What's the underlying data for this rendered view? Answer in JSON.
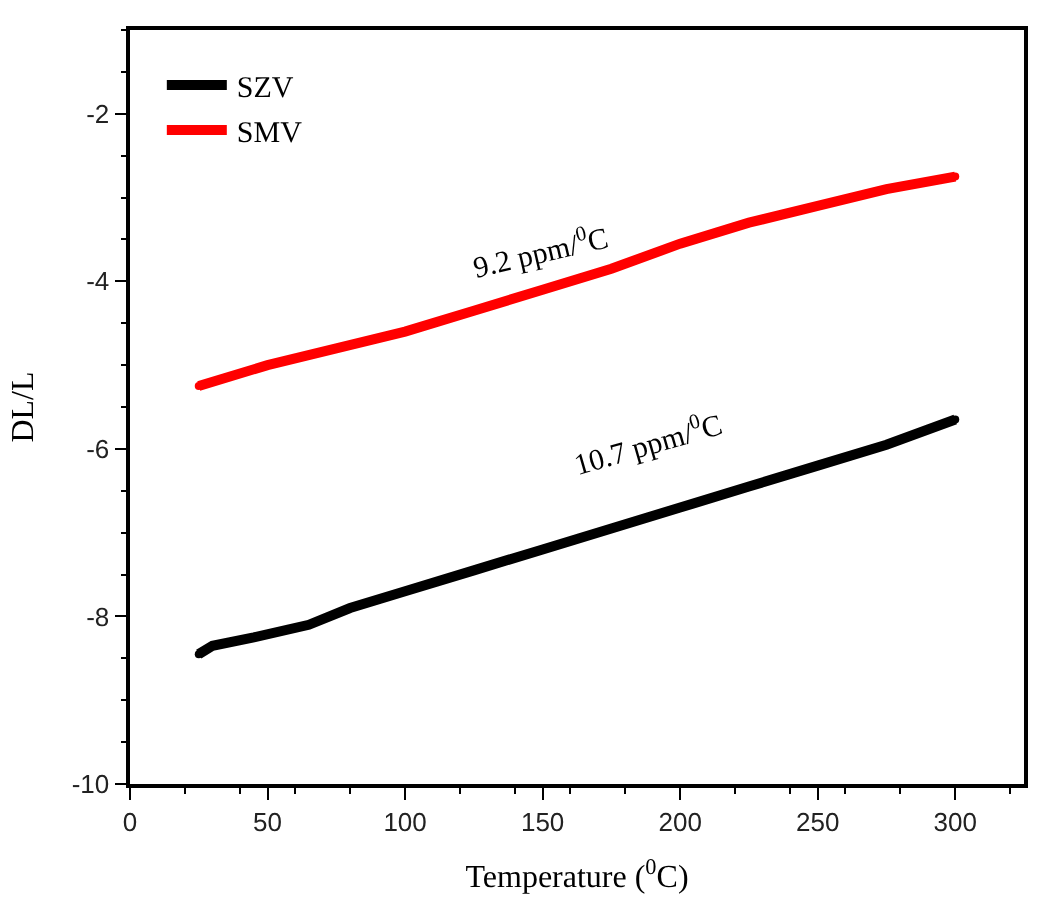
{
  "chart_data": {
    "type": "line",
    "xlabel": "Temperature ($^{0}$C)",
    "ylabel": "DL/L",
    "xlim": [
      0,
      325
    ],
    "xticks": [
      0,
      50,
      100,
      150,
      200,
      250,
      300
    ],
    "ylim": [
      -10,
      -1
    ],
    "yticks": [
      -10,
      -8,
      -6,
      -4,
      -2
    ],
    "legend": "top left",
    "marker": "circle",
    "series": [
      {
        "name": "SZV",
        "color": "#000000",
        "x": [
          25,
          30,
          45,
          65,
          80,
          100,
          125,
          150,
          175,
          200,
          225,
          250,
          275,
          300
        ],
        "values": [
          -8.45,
          -8.35,
          -8.25,
          -8.1,
          -7.9,
          -7.7,
          -7.45,
          -7.2,
          -6.95,
          -6.7,
          -6.45,
          -6.2,
          -5.95,
          -5.65
        ]
      },
      {
        "name": "SMV",
        "color": "#ff0000",
        "x": [
          25,
          50,
          75,
          100,
          125,
          150,
          175,
          200,
          225,
          250,
          275,
          300
        ],
        "values": [
          -5.25,
          -5.0,
          -4.8,
          -4.6,
          -4.35,
          -4.1,
          -3.85,
          -3.55,
          -3.3,
          -3.1,
          -2.9,
          -2.75
        ]
      }
    ],
    "annotations": [
      "9.2 ppm/$^{0}$C",
      "10.7 ppm/$^{0}$C"
    ]
  }
}
